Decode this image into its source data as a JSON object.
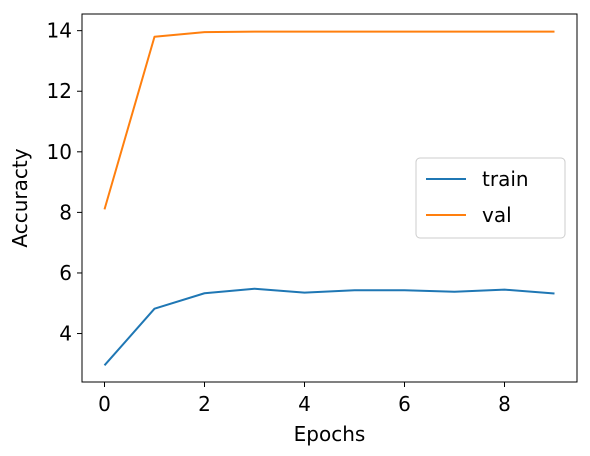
{
  "chart_data": {
    "type": "line",
    "title": "",
    "xlabel": "Epochs",
    "ylabel": "Accuracty",
    "x": [
      0,
      1,
      2,
      3,
      4,
      5,
      6,
      7,
      8,
      9
    ],
    "xlim": [
      -0.45,
      9.45
    ],
    "ylim": [
      2.4,
      14.55
    ],
    "xticks": [
      0,
      2,
      4,
      6,
      8
    ],
    "yticks": [
      4,
      6,
      8,
      10,
      12,
      14
    ],
    "grid": false,
    "legend": "center-right",
    "series": [
      {
        "name": "train",
        "color": "#1f77b4",
        "values": [
          2.95,
          4.82,
          5.33,
          5.48,
          5.35,
          5.43,
          5.43,
          5.38,
          5.45,
          5.32
        ]
      },
      {
        "name": "val",
        "color": "#ff7f0e",
        "values": [
          8.1,
          13.8,
          13.95,
          13.97,
          13.97,
          13.97,
          13.97,
          13.97,
          13.97,
          13.97
        ]
      }
    ]
  }
}
